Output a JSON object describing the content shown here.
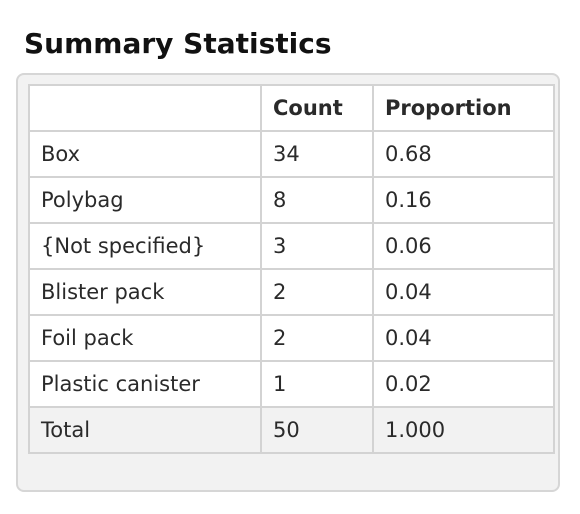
{
  "title": "Summary Statistics",
  "table": {
    "headers": [
      "",
      "Count",
      "Proportion"
    ],
    "rows": [
      {
        "label": "Box",
        "count": "34",
        "proportion": "0.68"
      },
      {
        "label": "Polybag",
        "count": "8",
        "proportion": "0.16"
      },
      {
        "label": "{Not specified}",
        "count": "3",
        "proportion": "0.06"
      },
      {
        "label": "Blister pack",
        "count": "2",
        "proportion": "0.04"
      },
      {
        "label": "Foil pack",
        "count": "2",
        "proportion": "0.04"
      },
      {
        "label": "Plastic canister",
        "count": "1",
        "proportion": "0.02"
      }
    ],
    "total": {
      "label": "Total",
      "count": "50",
      "proportion": "1.000"
    }
  }
}
